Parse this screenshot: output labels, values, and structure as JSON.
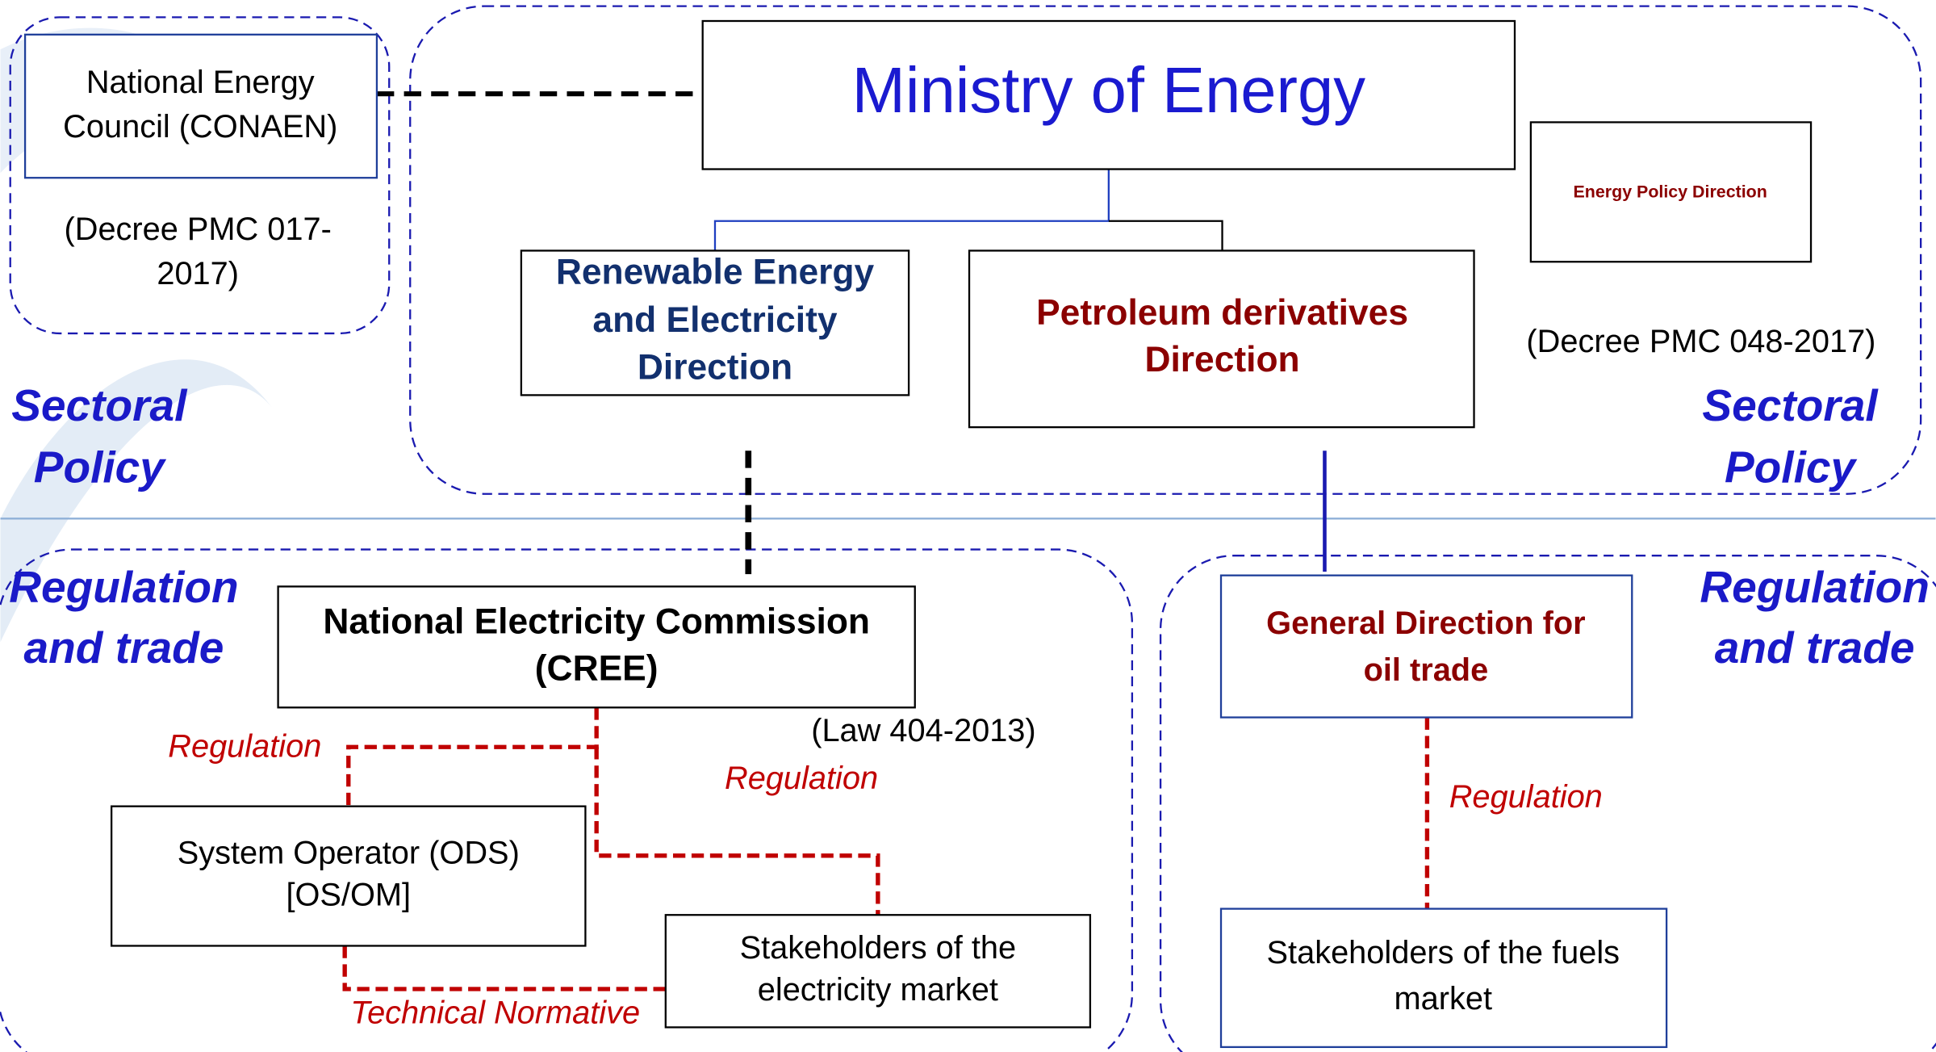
{
  "nodes": [
    {
      "label": [
        "Ministry of Energy"
      ]
    },
    {
      "label": [
        "National Energy",
        "Council (CONAEN)"
      ]
    },
    {
      "label": [
        "Energy Policy Direction"
      ]
    },
    {
      "label": [
        "Renewable Energy",
        "and Electricity",
        "Direction"
      ]
    },
    {
      "label": [
        "Petroleum derivatives",
        "Direction"
      ]
    },
    {
      "label": [
        "National Electricity Commission",
        "(CREE)"
      ]
    },
    {
      "label": [
        "General Direction for",
        "oil trade"
      ]
    },
    {
      "label": [
        "System Operator (ODS)",
        "[OS/OM]"
      ]
    },
    {
      "label": [
        "Stakeholders of the",
        "electricity market"
      ]
    },
    {
      "label": [
        "Stakeholders of the fuels",
        "market"
      ]
    }
  ],
  "notes": [
    [
      "(Decree PMC 017-",
      "2017)"
    ],
    [
      "(Decree PMC 048-2017)"
    ],
    [
      "(Law 404-2013)"
    ]
  ],
  "regions": [
    [
      "Sectoral",
      "Policy"
    ],
    [
      "Sectoral",
      "Policy"
    ],
    [
      "Regulation",
      "and trade"
    ],
    [
      "Regulation",
      "and trade"
    ]
  ],
  "edge_labels": [
    "Regulation",
    "Regulation",
    "Regulation",
    "Technical Normative"
  ]
}
